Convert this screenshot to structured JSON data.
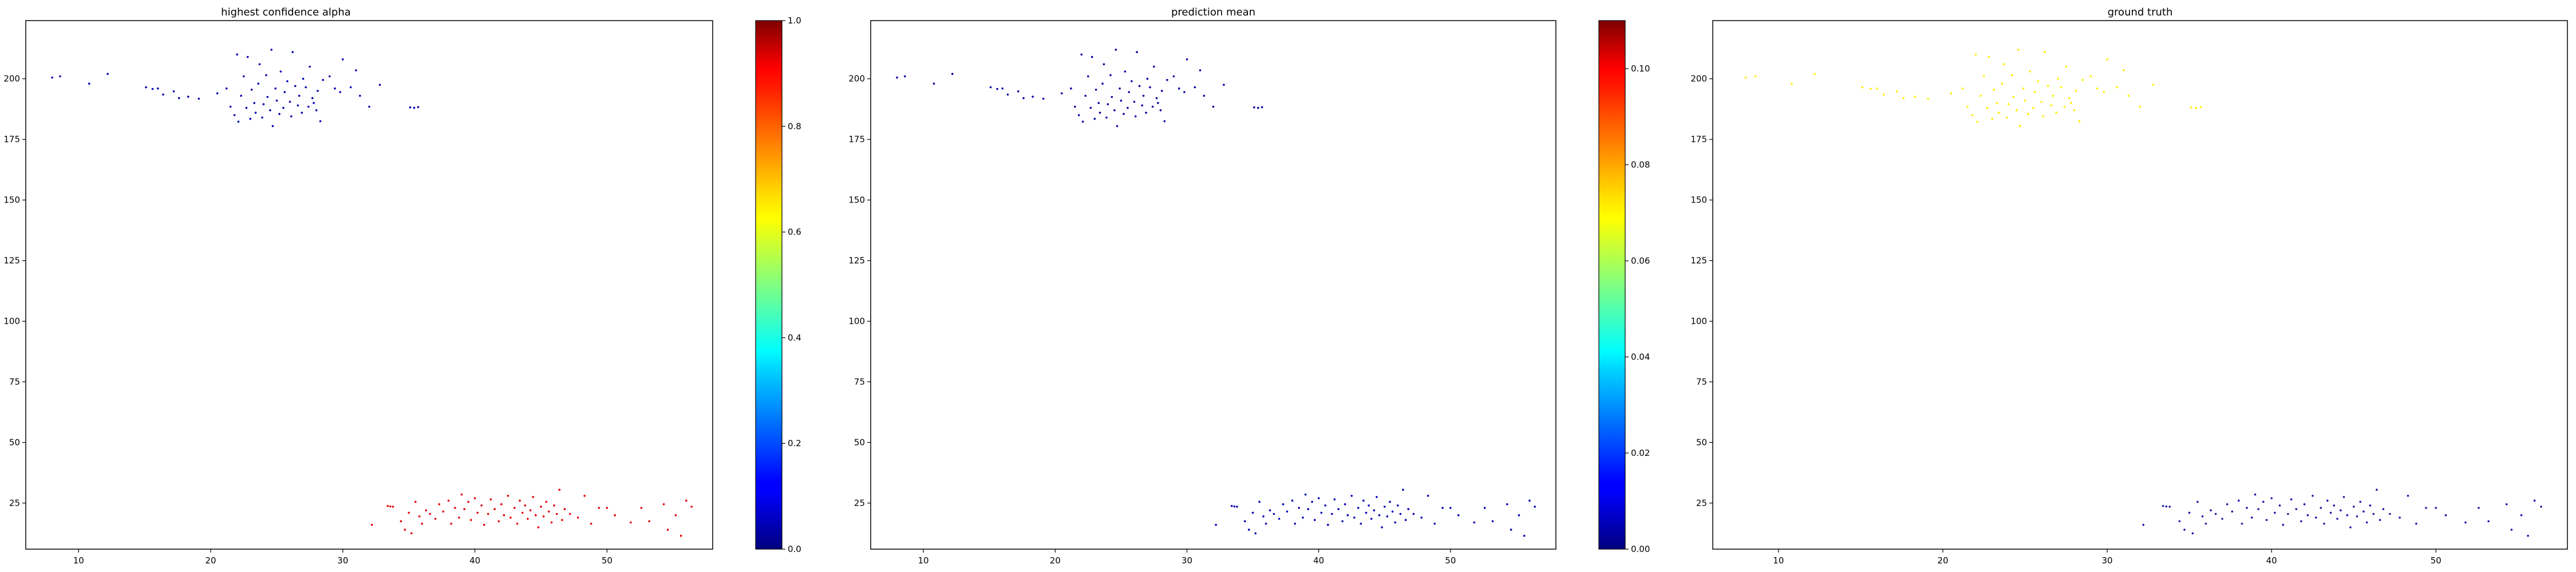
{
  "chart_data": [
    {
      "type": "scatter",
      "title": "highest confidence alpha",
      "xlim": [
        6,
        58
      ],
      "ylim": [
        6,
        224
      ],
      "x_ticks": [
        10,
        20,
        30,
        40,
        50
      ],
      "y_ticks": [
        25,
        50,
        75,
        100,
        125,
        150,
        175,
        200
      ],
      "colormap": "jet",
      "colorbar": {
        "min": 0.0,
        "max": 1.0,
        "ticks": [
          0.0,
          0.2,
          0.4,
          0.6,
          0.8,
          1.0
        ],
        "tick_labels": [
          "0.0",
          "0.2",
          "0.4",
          "0.6",
          "0.8",
          "1.0"
        ]
      },
      "clusters": [
        {
          "name": "upper",
          "value": 0.05
        },
        {
          "name": "lower",
          "value": 0.9
        }
      ]
    },
    {
      "type": "scatter",
      "title": "prediction mean",
      "xlim": [
        6,
        58
      ],
      "ylim": [
        6,
        224
      ],
      "x_ticks": [
        10,
        20,
        30,
        40,
        50
      ],
      "y_ticks": [
        25,
        50,
        75,
        100,
        125,
        150,
        175,
        200
      ],
      "colormap": "jet",
      "colorbar": {
        "min": 0.0,
        "max": 0.11,
        "ticks": [
          0.0,
          0.02,
          0.04,
          0.06,
          0.08,
          0.1
        ],
        "tick_labels": [
          "0.00",
          "0.02",
          "0.04",
          "0.06",
          "0.08",
          "0.10"
        ]
      },
      "clusters": [
        {
          "name": "upper",
          "value": 0.004
        },
        {
          "name": "lower",
          "value": 0.006
        }
      ]
    },
    {
      "type": "scatter",
      "title": "ground truth",
      "xlim": [
        6,
        58
      ],
      "ylim": [
        6,
        224
      ],
      "x_ticks": [
        10,
        20,
        30,
        40,
        50
      ],
      "y_ticks": [
        25,
        50,
        75,
        100,
        125,
        150,
        175,
        200
      ],
      "colormap": "jet",
      "clusters": [
        {
          "name": "upper",
          "color": "#ffee00"
        },
        {
          "name": "lower",
          "color": "#1a1aa8"
        }
      ]
    }
  ],
  "points": {
    "upper": [
      [
        8.0,
        200.5
      ],
      [
        8.6,
        201.0
      ],
      [
        10.8,
        198.0
      ],
      [
        12.2,
        202.0
      ],
      [
        15.1,
        196.5
      ],
      [
        15.6,
        195.8
      ],
      [
        16.0,
        196.0
      ],
      [
        16.4,
        193.5
      ],
      [
        17.2,
        194.8
      ],
      [
        17.6,
        192.0
      ],
      [
        18.3,
        192.6
      ],
      [
        19.1,
        191.8
      ],
      [
        20.5,
        194.0
      ],
      [
        21.2,
        196.0
      ],
      [
        21.5,
        188.5
      ],
      [
        21.8,
        185.0
      ],
      [
        22.0,
        210.0
      ],
      [
        22.1,
        182.3
      ],
      [
        22.3,
        193.0
      ],
      [
        22.5,
        201.0
      ],
      [
        22.7,
        188.0
      ],
      [
        22.8,
        209.0
      ],
      [
        23.0,
        183.5
      ],
      [
        23.1,
        195.5
      ],
      [
        23.3,
        190.0
      ],
      [
        23.4,
        186.0
      ],
      [
        23.6,
        198.0
      ],
      [
        23.7,
        206.0
      ],
      [
        23.9,
        184.0
      ],
      [
        24.0,
        189.5
      ],
      [
        24.2,
        201.5
      ],
      [
        24.3,
        192.5
      ],
      [
        24.5,
        187.0
      ],
      [
        24.6,
        212.0
      ],
      [
        24.7,
        180.5
      ],
      [
        24.9,
        196.0
      ],
      [
        25.0,
        191.0
      ],
      [
        25.2,
        185.5
      ],
      [
        25.3,
        203.0
      ],
      [
        25.5,
        188.0
      ],
      [
        25.6,
        194.5
      ],
      [
        25.8,
        199.0
      ],
      [
        26.0,
        190.5
      ],
      [
        26.1,
        184.5
      ],
      [
        26.2,
        211.0
      ],
      [
        26.4,
        197.0
      ],
      [
        26.6,
        189.0
      ],
      [
        26.7,
        193.0
      ],
      [
        26.9,
        186.0
      ],
      [
        27.0,
        200.0
      ],
      [
        27.2,
        196.5
      ],
      [
        27.4,
        188.5
      ],
      [
        27.5,
        205.0
      ],
      [
        27.7,
        192.0
      ],
      [
        27.8,
        190.0
      ],
      [
        28.0,
        187.0
      ],
      [
        28.1,
        195.0
      ],
      [
        28.3,
        182.5
      ],
      [
        28.5,
        199.5
      ],
      [
        29.0,
        201.0
      ],
      [
        29.4,
        196.0
      ],
      [
        29.8,
        194.5
      ],
      [
        30.0,
        208.0
      ],
      [
        30.6,
        196.5
      ],
      [
        31.0,
        203.5
      ],
      [
        31.3,
        193.0
      ],
      [
        32.0,
        188.5
      ],
      [
        32.8,
        197.5
      ],
      [
        35.1,
        188.2
      ],
      [
        35.4,
        188.0
      ],
      [
        35.7,
        188.3
      ]
    ],
    "lower": [
      [
        32.2,
        16.0
      ],
      [
        33.4,
        23.8
      ],
      [
        33.6,
        23.6
      ],
      [
        33.8,
        23.5
      ],
      [
        34.4,
        17.5
      ],
      [
        34.7,
        14.0
      ],
      [
        35.0,
        21.0
      ],
      [
        35.2,
        12.5
      ],
      [
        35.5,
        25.5
      ],
      [
        35.8,
        19.5
      ],
      [
        36.0,
        16.5
      ],
      [
        36.3,
        22.0
      ],
      [
        36.6,
        20.5
      ],
      [
        37.0,
        18.5
      ],
      [
        37.3,
        24.5
      ],
      [
        37.6,
        21.5
      ],
      [
        38.0,
        26.0
      ],
      [
        38.2,
        16.5
      ],
      [
        38.5,
        23.0
      ],
      [
        38.8,
        19.0
      ],
      [
        39.0,
        28.5
      ],
      [
        39.2,
        22.5
      ],
      [
        39.5,
        25.5
      ],
      [
        39.7,
        18.0
      ],
      [
        40.0,
        27.0
      ],
      [
        40.2,
        21.0
      ],
      [
        40.5,
        24.0
      ],
      [
        40.7,
        16.0
      ],
      [
        41.0,
        20.5
      ],
      [
        41.2,
        26.5
      ],
      [
        41.5,
        22.5
      ],
      [
        41.8,
        17.5
      ],
      [
        42.0,
        24.5
      ],
      [
        42.2,
        20.0
      ],
      [
        42.5,
        28.0
      ],
      [
        42.7,
        19.0
      ],
      [
        43.0,
        23.0
      ],
      [
        43.2,
        16.5
      ],
      [
        43.4,
        26.0
      ],
      [
        43.6,
        21.0
      ],
      [
        43.8,
        24.0
      ],
      [
        44.0,
        18.5
      ],
      [
        44.2,
        22.0
      ],
      [
        44.4,
        27.5
      ],
      [
        44.6,
        20.0
      ],
      [
        44.8,
        15.0
      ],
      [
        45.0,
        23.5
      ],
      [
        45.2,
        19.5
      ],
      [
        45.4,
        25.5
      ],
      [
        45.6,
        21.5
      ],
      [
        45.8,
        17.0
      ],
      [
        46.0,
        24.0
      ],
      [
        46.2,
        20.5
      ],
      [
        46.4,
        30.5
      ],
      [
        46.6,
        18.0
      ],
      [
        46.8,
        22.5
      ],
      [
        47.2,
        20.5
      ],
      [
        47.8,
        19.0
      ],
      [
        48.3,
        28.0
      ],
      [
        48.8,
        16.5
      ],
      [
        49.4,
        23.0
      ],
      [
        50.0,
        23.0
      ],
      [
        50.6,
        20.0
      ],
      [
        51.8,
        17.0
      ],
      [
        52.6,
        23.0
      ],
      [
        53.2,
        17.5
      ],
      [
        54.3,
        24.5
      ],
      [
        54.6,
        14.0
      ],
      [
        55.2,
        20.0
      ],
      [
        55.6,
        11.5
      ],
      [
        56.0,
        26.0
      ],
      [
        56.4,
        23.5
      ]
    ]
  }
}
